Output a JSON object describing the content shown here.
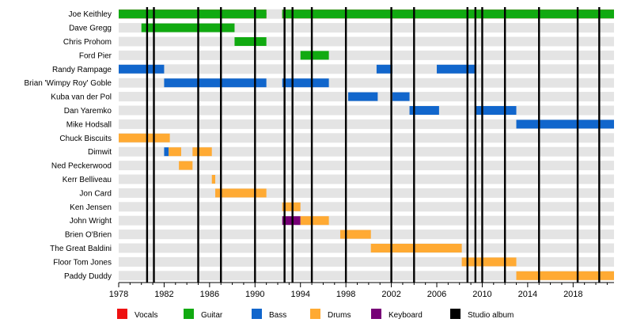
{
  "chart_data": {
    "type": "timeline",
    "title": "",
    "xlabel": "",
    "ylabel": "",
    "xlim": [
      1978,
      2021.6
    ],
    "xticks": [
      1978,
      1982,
      1986,
      1990,
      1994,
      1998,
      2002,
      2006,
      2010,
      2014,
      2018
    ],
    "grid": "alternating row stripes",
    "colors": {
      "Vocals": "#ee1111",
      "Guitar": "#11aa11",
      "Bass": "#1166cc",
      "Drums": "#ffaa33",
      "Keyboard": "#770077",
      "Studio album": "#000000"
    },
    "members": [
      {
        "name": "Joe Keithley",
        "spans": [
          {
            "role": "Vocals",
            "start": 1978,
            "end": 1991
          },
          {
            "role": "Guitar",
            "start": 1978,
            "end": 1991
          },
          {
            "role": "Vocals",
            "start": 1992.4,
            "end": 2021.6
          },
          {
            "role": "Guitar",
            "start": 1992.4,
            "end": 2021.6
          }
        ]
      },
      {
        "name": "Dave Gregg",
        "spans": [
          {
            "role": "Guitar",
            "start": 1980,
            "end": 1988.2
          }
        ]
      },
      {
        "name": "Chris Prohom",
        "spans": [
          {
            "role": "Guitar",
            "start": 1988.2,
            "end": 1991
          }
        ]
      },
      {
        "name": "Ford Pier",
        "spans": [
          {
            "role": "Guitar",
            "start": 1994,
            "end": 1996.5
          }
        ]
      },
      {
        "name": "Randy Rampage",
        "spans": [
          {
            "role": "Bass",
            "start": 1978,
            "end": 1982
          },
          {
            "role": "Bass",
            "start": 2000.7,
            "end": 2002.1
          },
          {
            "role": "Bass",
            "start": 2006,
            "end": 2009.4
          }
        ]
      },
      {
        "name": "Brian 'Wimpy Roy' Goble",
        "spans": [
          {
            "role": "Bass",
            "start": 1982,
            "end": 1991
          },
          {
            "role": "Bass",
            "start": 1992.4,
            "end": 1996.5
          }
        ]
      },
      {
        "name": "Kuba van der Pol",
        "spans": [
          {
            "role": "Bass",
            "start": 1998.2,
            "end": 2000.8
          },
          {
            "role": "Bass",
            "start": 2002.1,
            "end": 2003.6
          }
        ]
      },
      {
        "name": "Dan Yaremko",
        "spans": [
          {
            "role": "Bass",
            "start": 2003.6,
            "end": 2006.2
          },
          {
            "role": "Bass",
            "start": 2009.4,
            "end": 2013
          }
        ]
      },
      {
        "name": "Mike Hodsall",
        "spans": [
          {
            "role": "Bass",
            "start": 2013,
            "end": 2021.6
          }
        ]
      },
      {
        "name": "Chuck Biscuits",
        "spans": [
          {
            "role": "Drums",
            "start": 1978,
            "end": 1982.5
          }
        ]
      },
      {
        "name": "Dimwit",
        "spans": [
          {
            "role": "Bass",
            "start": 1982,
            "end": 1982.4
          },
          {
            "role": "Drums",
            "start": 1982.4,
            "end": 1983.5
          },
          {
            "role": "Drums",
            "start": 1984.5,
            "end": 1986.2
          }
        ]
      },
      {
        "name": "Ned Peckerwood",
        "spans": [
          {
            "role": "Drums",
            "start": 1983.3,
            "end": 1984.5
          }
        ]
      },
      {
        "name": "Kerr Belliveau",
        "spans": [
          {
            "role": "Drums",
            "start": 1986.2,
            "end": 1986.5
          }
        ]
      },
      {
        "name": "Jon Card",
        "spans": [
          {
            "role": "Drums",
            "start": 1986.5,
            "end": 1991
          }
        ]
      },
      {
        "name": "Ken Jensen",
        "spans": [
          {
            "role": "Drums",
            "start": 1992.4,
            "end": 1994
          }
        ]
      },
      {
        "name": "John Wright",
        "spans": [
          {
            "role": "Keyboard",
            "start": 1992.4,
            "end": 1994
          },
          {
            "role": "Drums",
            "start": 1994,
            "end": 1996.5
          }
        ]
      },
      {
        "name": "Brien O'Brien",
        "spans": [
          {
            "role": "Drums",
            "start": 1997.5,
            "end": 2000.2
          }
        ]
      },
      {
        "name": "The Great Baldini",
        "spans": [
          {
            "role": "Drums",
            "start": 2000.2,
            "end": 2008.2
          }
        ]
      },
      {
        "name": "Floor Tom Jones",
        "spans": [
          {
            "role": "Drums",
            "start": 2008.2,
            "end": 2013
          }
        ]
      },
      {
        "name": "Paddy Duddy",
        "spans": [
          {
            "role": "Drums",
            "start": 2013,
            "end": 2021.6
          }
        ]
      }
    ],
    "studio_albums": [
      1980.5,
      1981.1,
      1985,
      1987,
      1990,
      1992.6,
      1993.3,
      1995,
      1998,
      2002,
      2004,
      2008.7,
      2009.4,
      2010,
      2012,
      2015,
      2018.4,
      2020.3
    ],
    "legend": {
      "placement": "bottom",
      "items": [
        {
          "label": "Vocals",
          "color": "#ee1111"
        },
        {
          "label": "Guitar",
          "color": "#11aa11"
        },
        {
          "label": "Bass",
          "color": "#1166cc"
        },
        {
          "label": "Drums",
          "color": "#ffaa33"
        },
        {
          "label": "Keyboard",
          "color": "#770077"
        },
        {
          "label": "Studio album",
          "color": "#000000"
        }
      ]
    }
  }
}
